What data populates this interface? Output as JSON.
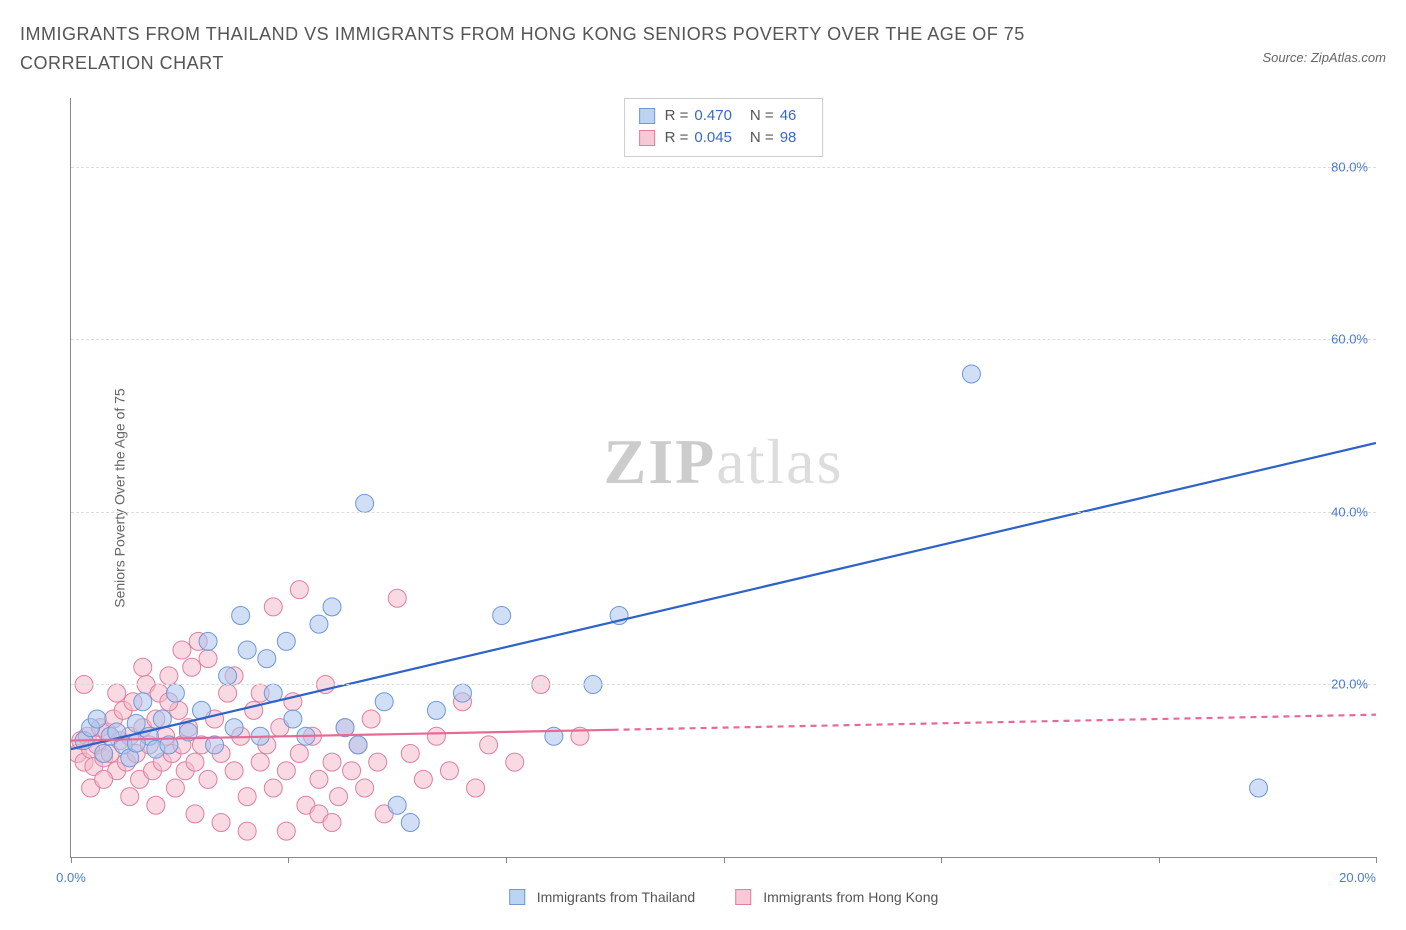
{
  "title": "IMMIGRANTS FROM THAILAND VS IMMIGRANTS FROM HONG KONG SENIORS POVERTY OVER THE AGE OF 75 CORRELATION CHART",
  "source_prefix": "Source: ",
  "source_name": "ZipAtlas.com",
  "y_axis_label": "Seniors Poverty Over the Age of 75",
  "watermark_zip": "ZIP",
  "watermark_atlas": "atlas",
  "chart": {
    "type": "scatter",
    "xlim": [
      0,
      20
    ],
    "ylim": [
      0,
      88
    ],
    "x_ticks": [
      0,
      3.33,
      6.67,
      10,
      13.33,
      16.67,
      20
    ],
    "x_tick_labels_shown": {
      "0": "0.0%",
      "20": "20.0%"
    },
    "y_ticks": [
      20,
      40,
      60,
      80
    ],
    "y_tick_labels": [
      "20.0%",
      "40.0%",
      "60.0%",
      "80.0%"
    ],
    "background_color": "#ffffff",
    "grid_color": "#dddddd",
    "axis_color": "#888888",
    "tick_label_color": "#4a7bd0"
  },
  "series": [
    {
      "name": "Immigrants from Thailand",
      "color_fill": "#a9c5ee",
      "color_stroke": "#6f98d8",
      "swatch_fill": "#bcd3f2",
      "swatch_border": "#6f98d8",
      "marker_radius": 9,
      "fill_opacity": 0.55,
      "R_label": "R = ",
      "R": "0.470",
      "N_label": "N = ",
      "N": "46",
      "trend": {
        "x1": 0,
        "y1": 12.5,
        "x2": 20,
        "y2": 48,
        "solid_until_x": 20,
        "stroke": "#2c62c9",
        "width": 2.2
      },
      "points": [
        [
          0.2,
          13.5
        ],
        [
          0.3,
          15
        ],
        [
          0.5,
          12
        ],
        [
          0.6,
          14
        ],
        [
          0.8,
          13
        ],
        [
          0.9,
          11.5
        ],
        [
          1.0,
          15.5
        ],
        [
          1.1,
          18
        ],
        [
          1.2,
          14
        ],
        [
          1.3,
          12.5
        ],
        [
          1.4,
          16
        ],
        [
          1.5,
          13
        ],
        [
          1.6,
          19
        ],
        [
          1.8,
          14.5
        ],
        [
          2.0,
          17
        ],
        [
          2.1,
          25
        ],
        [
          2.2,
          13
        ],
        [
          2.4,
          21
        ],
        [
          2.5,
          15
        ],
        [
          2.6,
          28
        ],
        [
          2.7,
          24
        ],
        [
          2.9,
          14
        ],
        [
          3.0,
          23
        ],
        [
          3.1,
          19
        ],
        [
          3.3,
          25
        ],
        [
          3.4,
          16
        ],
        [
          3.6,
          14
        ],
        [
          3.8,
          27
        ],
        [
          4.0,
          29
        ],
        [
          4.2,
          15
        ],
        [
          4.4,
          13
        ],
        [
          4.5,
          41
        ],
        [
          4.8,
          18
        ],
        [
          5.0,
          6
        ],
        [
          5.2,
          4
        ],
        [
          5.6,
          17
        ],
        [
          6.0,
          19
        ],
        [
          6.6,
          28
        ],
        [
          7.4,
          14
        ],
        [
          8.0,
          20
        ],
        [
          8.4,
          28
        ],
        [
          13.8,
          56
        ],
        [
          18.2,
          8
        ],
        [
          0.4,
          16
        ],
        [
          0.7,
          14.5
        ],
        [
          1.0,
          13.2
        ]
      ]
    },
    {
      "name": "Immigrants from Hong Kong",
      "color_fill": "#f4b9cb",
      "color_stroke": "#e07fa0",
      "swatch_fill": "#f7c9d7",
      "swatch_border": "#e07fa0",
      "marker_radius": 9,
      "fill_opacity": 0.55,
      "R_label": "R = ",
      "R": "0.045",
      "N_label": "N = ",
      "N": "98",
      "trend": {
        "x1": 0,
        "y1": 13.5,
        "x2": 20,
        "y2": 16.5,
        "solid_until_x": 8.3,
        "stroke": "#e76a94",
        "width": 2.2,
        "dash": "6 5"
      },
      "points": [
        [
          0.1,
          12
        ],
        [
          0.15,
          13.5
        ],
        [
          0.2,
          11
        ],
        [
          0.25,
          14
        ],
        [
          0.3,
          12.5
        ],
        [
          0.35,
          10.5
        ],
        [
          0.4,
          13
        ],
        [
          0.45,
          15
        ],
        [
          0.5,
          11.5
        ],
        [
          0.55,
          14.5
        ],
        [
          0.6,
          12
        ],
        [
          0.65,
          16
        ],
        [
          0.7,
          10
        ],
        [
          0.75,
          13.5
        ],
        [
          0.8,
          17
        ],
        [
          0.85,
          11
        ],
        [
          0.9,
          14
        ],
        [
          0.95,
          18
        ],
        [
          1.0,
          12
        ],
        [
          1.05,
          9
        ],
        [
          1.1,
          15
        ],
        [
          1.15,
          20
        ],
        [
          1.2,
          13
        ],
        [
          1.25,
          10
        ],
        [
          1.3,
          16
        ],
        [
          1.35,
          19
        ],
        [
          1.4,
          11
        ],
        [
          1.45,
          14
        ],
        [
          1.5,
          21
        ],
        [
          1.55,
          12
        ],
        [
          1.6,
          8
        ],
        [
          1.65,
          17
        ],
        [
          1.7,
          13
        ],
        [
          1.75,
          10
        ],
        [
          1.8,
          15
        ],
        [
          1.85,
          22
        ],
        [
          1.9,
          11
        ],
        [
          1.95,
          25
        ],
        [
          2.0,
          13
        ],
        [
          2.1,
          9
        ],
        [
          2.2,
          16
        ],
        [
          2.3,
          12
        ],
        [
          2.4,
          19
        ],
        [
          2.5,
          10
        ],
        [
          2.6,
          14
        ],
        [
          2.7,
          7
        ],
        [
          2.8,
          17
        ],
        [
          2.9,
          11
        ],
        [
          3.0,
          13
        ],
        [
          3.1,
          8
        ],
        [
          3.2,
          15
        ],
        [
          3.3,
          10
        ],
        [
          3.4,
          18
        ],
        [
          3.5,
          12
        ],
        [
          3.6,
          6
        ],
        [
          3.7,
          14
        ],
        [
          3.8,
          9
        ],
        [
          3.9,
          20
        ],
        [
          4.0,
          11
        ],
        [
          4.1,
          7
        ],
        [
          4.2,
          15
        ],
        [
          4.3,
          10
        ],
        [
          4.4,
          13
        ],
        [
          4.5,
          8
        ],
        [
          4.6,
          16
        ],
        [
          4.7,
          11
        ],
        [
          4.8,
          5
        ],
        [
          5.0,
          30
        ],
        [
          5.2,
          12
        ],
        [
          5.4,
          9
        ],
        [
          5.6,
          14
        ],
        [
          5.8,
          10
        ],
        [
          6.0,
          18
        ],
        [
          6.2,
          8
        ],
        [
          6.4,
          13
        ],
        [
          6.8,
          11
        ],
        [
          7.2,
          20
        ],
        [
          7.8,
          14
        ],
        [
          0.2,
          20
        ],
        [
          0.3,
          8
        ],
        [
          0.5,
          9
        ],
        [
          0.7,
          19
        ],
        [
          0.9,
          7
        ],
        [
          1.1,
          22
        ],
        [
          1.3,
          6
        ],
        [
          1.5,
          18
        ],
        [
          1.7,
          24
        ],
        [
          1.9,
          5
        ],
        [
          2.1,
          23
        ],
        [
          2.3,
          4
        ],
        [
          2.5,
          21
        ],
        [
          2.7,
          3
        ],
        [
          2.9,
          19
        ],
        [
          3.1,
          29
        ],
        [
          3.3,
          3
        ],
        [
          3.5,
          31
        ],
        [
          3.8,
          5
        ],
        [
          4.0,
          4
        ]
      ]
    }
  ],
  "bottom_legend": [
    {
      "label": "Immigrants from Thailand",
      "fill": "#bcd3f2",
      "border": "#6f98d8"
    },
    {
      "label": "Immigrants from Hong Kong",
      "fill": "#f7c9d7",
      "border": "#e07fa0"
    }
  ]
}
